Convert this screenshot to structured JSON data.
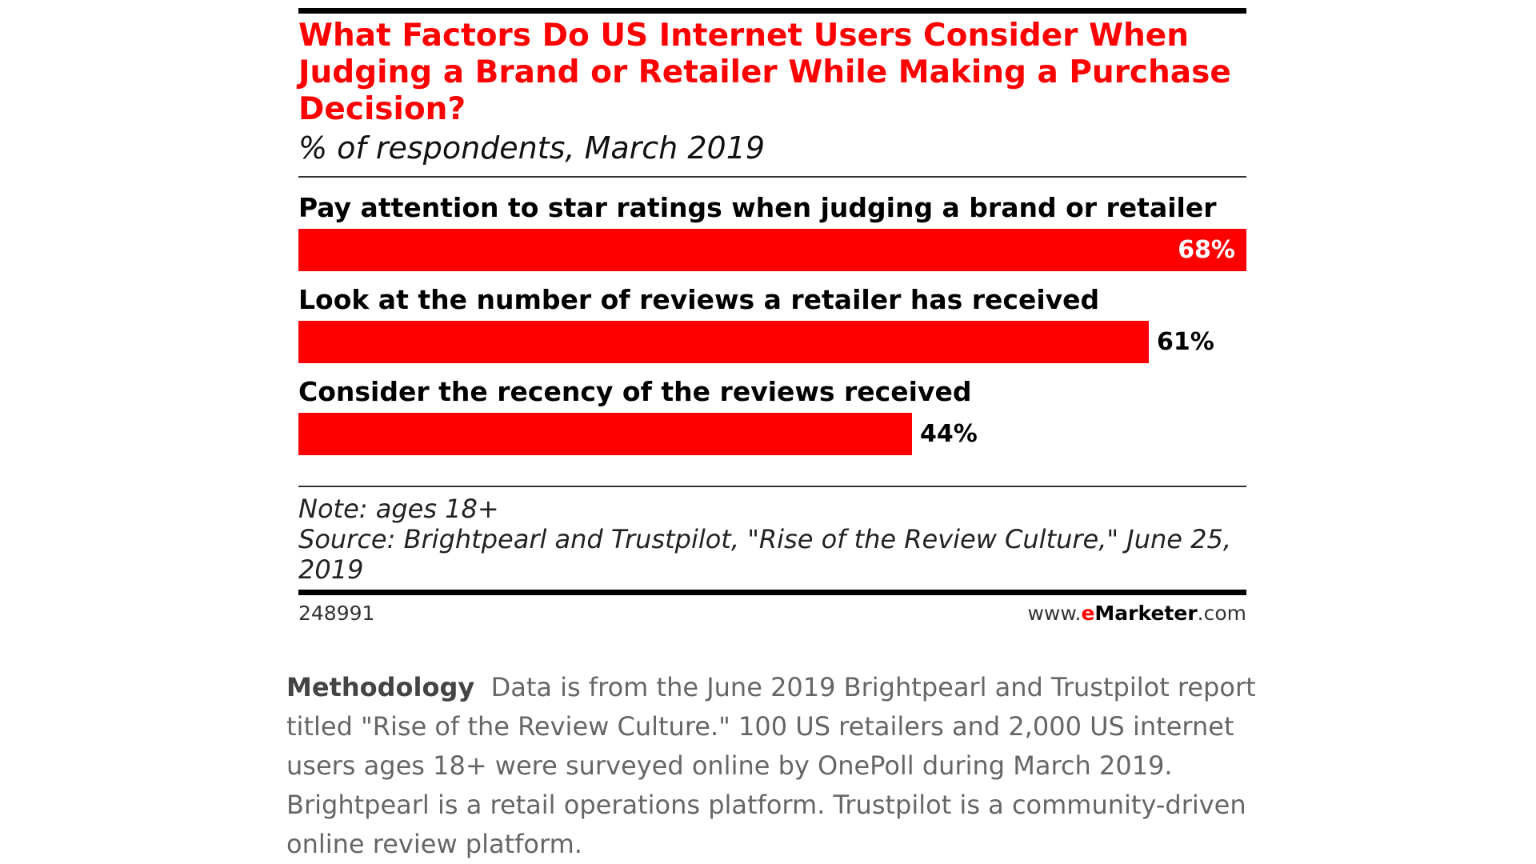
{
  "chart_data": {
    "type": "bar",
    "orientation": "horizontal",
    "title": "What Factors Do US Internet Users Consider When Judging a Brand or Retailer While Making a Purchase Decision?",
    "subtitle": "% of respondents, March 2019",
    "categories": [
      "Pay attention to star ratings when judging a brand or retailer",
      "Look at the number of reviews a retailer has received",
      "Consider the recency of the reviews received"
    ],
    "values": [
      68,
      61,
      44
    ],
    "value_labels": [
      "68%",
      "61%",
      "44%"
    ],
    "bar_color": "#ff0000",
    "xlim": [
      0,
      68
    ],
    "grid": false,
    "note": "Note: ages 18+",
    "source": "Source: Brightpearl and Trustpilot, \"Rise of the Review Culture,\" June 25, 2019",
    "chart_id": "248991",
    "brand": {
      "prefix": "www.",
      "e": "e",
      "m": "Marketer",
      "suffix": ".com"
    }
  },
  "methodology": {
    "label": "Methodology",
    "text": "Data is from the June 2019 Brightpearl and Trustpilot report titled \"Rise of the Review Culture.\" 100 US retailers and 2,000 US internet users ages 18+ were surveyed online by OnePoll during March 2019. Brightpearl is a retail operations platform. Trustpilot is a community-driven online review platform."
  }
}
